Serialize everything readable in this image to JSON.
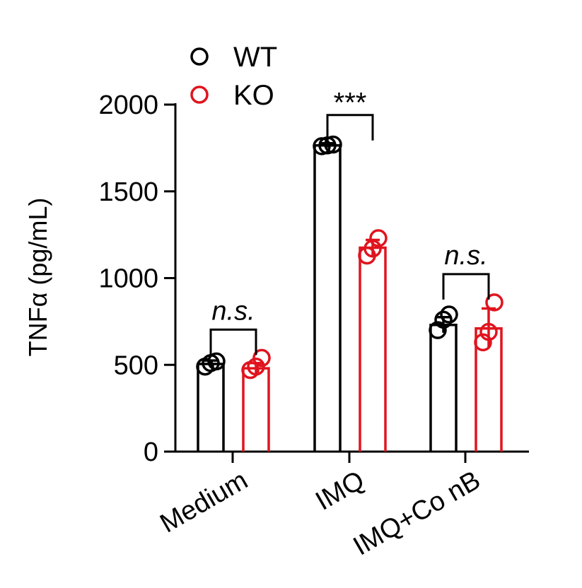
{
  "chart_data": {
    "type": "bar",
    "ylabel": "TNFα (pg/mL)",
    "ylim": [
      0,
      2000
    ],
    "yticks": [
      0,
      500,
      1000,
      1500,
      2000
    ],
    "categories": [
      "Medium",
      "IMQ",
      "IMQ+Co nB"
    ],
    "series": [
      {
        "name": "WT",
        "color": "#000000",
        "values": [
          505,
          1765,
          730
        ],
        "errors": [
          20,
          12,
          45
        ],
        "points": [
          [
            490,
            510,
            520
          ],
          [
            1760,
            1765,
            1770
          ],
          [
            700,
            760,
            790
          ]
        ]
      },
      {
        "name": "KO",
        "color": "#e0141e",
        "values": [
          480,
          1175,
          710
        ],
        "errors": [
          30,
          45,
          115
        ],
        "points": [
          [
            470,
            490,
            540
          ],
          [
            1130,
            1170,
            1230
          ],
          [
            630,
            690,
            860
          ]
        ]
      }
    ],
    "significance": [
      "n.s.",
      "***",
      "n.s."
    ],
    "legend_position": "top-left",
    "grid": false
  }
}
